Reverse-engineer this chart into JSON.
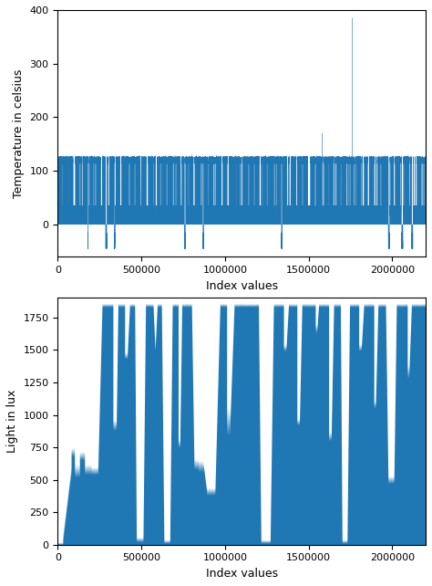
{
  "fig_width": 4.74,
  "fig_height": 6.42,
  "dpi": 100,
  "line_color": "#1f77b4",
  "background_color": "#ffffff",
  "n_points": 2200000,
  "top_plot": {
    "ylabel": "Temperature in celsius",
    "xlabel": "Index values",
    "ylim": [
      -60,
      400
    ],
    "xlim": [
      0,
      2200000
    ],
    "yticks": [
      0,
      100,
      200,
      300,
      400
    ],
    "xticks": [
      0,
      500000,
      1000000,
      1500000,
      2000000
    ],
    "xticklabels": [
      "0",
      "500000",
      "1000000",
      "1500000",
      "2000000"
    ]
  },
  "bottom_plot": {
    "ylabel": "Light in lux",
    "xlabel": "Index values",
    "ylim": [
      0,
      1900
    ],
    "xlim": [
      0,
      2200000
    ],
    "yticks": [
      0,
      250,
      500,
      750,
      1000,
      1250,
      1500,
      1750
    ],
    "xticks": [
      0,
      500000,
      1000000,
      1500000,
      2000000
    ],
    "xticklabels": [
      "0",
      "500000",
      "1000000",
      "1500000",
      "2000000"
    ]
  }
}
